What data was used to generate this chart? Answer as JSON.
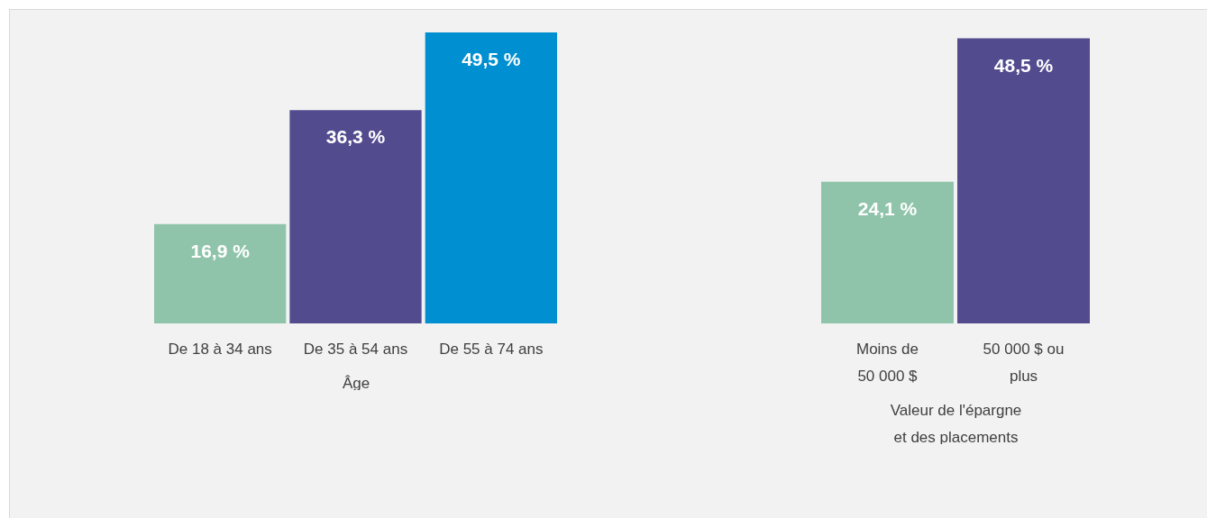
{
  "chart_data": [
    {
      "type": "bar",
      "categories": [
        "De 18 à 34 ans",
        "De 35 à 54 ans",
        "De 55 à 74 ans"
      ],
      "values": [
        16.9,
        36.3,
        49.5
      ],
      "colors": [
        "#8fc4ab",
        "#524c8f",
        "#008fd0"
      ],
      "value_labels": [
        "16,9 %",
        "36,3 %",
        "49,5 %"
      ],
      "xlabel": "Âge"
    },
    {
      "type": "bar",
      "categories": [
        "Moins de\n50 000 $",
        "50 000 $ ou\nplus"
      ],
      "values": [
        24.1,
        48.5
      ],
      "colors": [
        "#8fc4ab",
        "#524c8f"
      ],
      "value_labels": [
        "24,1 %",
        "48,5 %"
      ],
      "xlabel": "Valeur de l'épargne\net des placements"
    }
  ]
}
